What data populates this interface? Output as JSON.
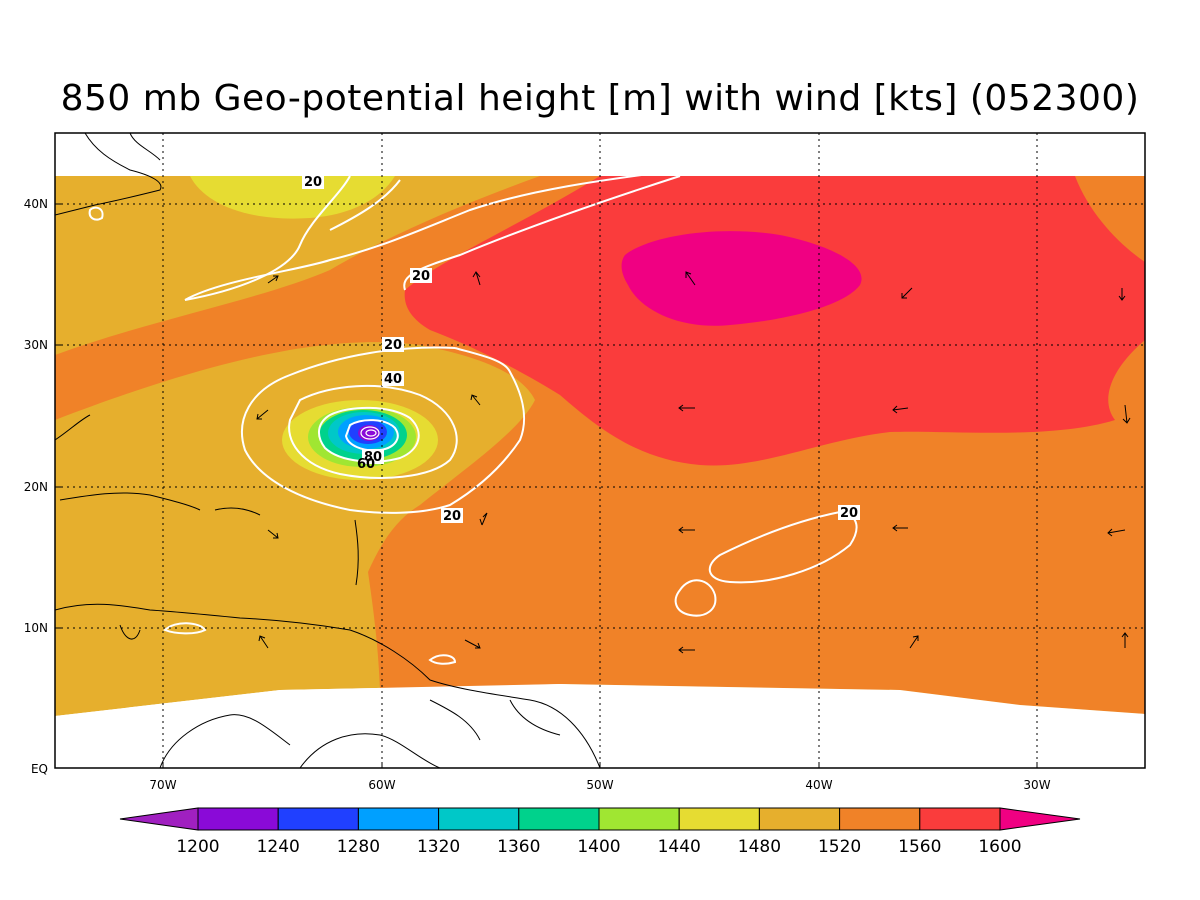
{
  "title": "850 mb Geo-potential height [m] with wind [kts] (052300)",
  "map": {
    "lon_ticks": [
      "70W",
      "60W",
      "50W",
      "40W",
      "30W"
    ],
    "lat_ticks": [
      "40N",
      "30N",
      "20N",
      "10N",
      "EQ"
    ],
    "contour_labels": [
      "20",
      "20",
      "20",
      "40",
      "80",
      "60",
      "20",
      "20"
    ]
  },
  "colorbar": {
    "levels": [
      "1200",
      "1240",
      "1280",
      "1320",
      "1360",
      "1400",
      "1440",
      "1480",
      "1520",
      "1560",
      "1600"
    ],
    "colors": [
      "#a020c0",
      "#8a0ad8",
      "#2040ff",
      "#00a0ff",
      "#00c8c8",
      "#00d28c",
      "#a0e632",
      "#e6dc32",
      "#e6af2d",
      "#f08228",
      "#fa3c3c",
      "#f00082"
    ]
  },
  "field_colors": {
    "c1480": "#e6dc32",
    "c1520": "#e6af2d",
    "c1560": "#f08228",
    "c1600": "#fa3c3c",
    "c1640": "#f00082",
    "contour": "#ffffff",
    "coast": "#000000"
  }
}
